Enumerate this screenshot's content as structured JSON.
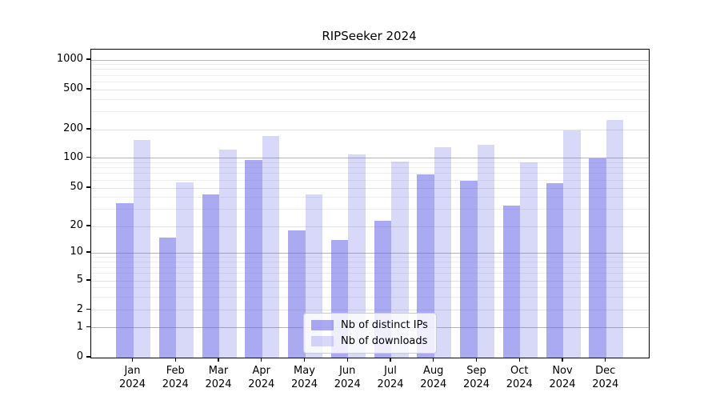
{
  "title": "RIPSeeker 2024",
  "legend": {
    "items": [
      {
        "label": "Nb of distinct IPs",
        "color": "rgba(100,100,232,0.55)"
      },
      {
        "label": "Nb of downloads",
        "color": "rgba(100,100,232,0.25)"
      }
    ],
    "position": "lower center"
  },
  "chart_data": {
    "type": "bar",
    "title": "RIPSeeker 2024",
    "categories": [
      "Jan 2024",
      "Feb 2024",
      "Mar 2024",
      "Apr 2024",
      "May 2024",
      "Jun 2024",
      "Jul 2024",
      "Aug 2024",
      "Sep 2024",
      "Oct 2024",
      "Nov 2024",
      "Dec 2024"
    ],
    "category_month_labels": [
      "Jan",
      "Feb",
      "Mar",
      "Apr",
      "May",
      "Jun",
      "Jul",
      "Aug",
      "Sep",
      "Oct",
      "Nov",
      "Dec"
    ],
    "category_year_label": "2024",
    "series": [
      {
        "name": "Nb of distinct IPs",
        "color": "rgba(100,100,232,0.55)",
        "values": [
          35,
          15,
          43,
          95,
          18,
          14,
          23,
          68,
          59,
          33,
          56,
          100
        ]
      },
      {
        "name": "Nb of downloads",
        "color": "rgba(100,100,232,0.25)",
        "values": [
          155,
          57,
          122,
          170,
          43,
          110,
          92,
          131,
          139,
          90,
          195,
          250
        ]
      }
    ],
    "yaxis": {
      "scale": "log-like",
      "tick_labels": [
        "0",
        "1",
        "2",
        "5",
        "10",
        "20",
        "50",
        "100",
        "200",
        "500",
        "1000"
      ],
      "tick_values": [
        0,
        1,
        2,
        5,
        10,
        20,
        50,
        100,
        200,
        500,
        1000
      ],
      "ylim": [
        0,
        1300
      ]
    },
    "grid": true,
    "legend_position": "lower center",
    "colors": {
      "grid_major": "#b4b4b4",
      "grid_minor": "#ededf0",
      "spine": "#000000",
      "background": "#ffffff"
    }
  }
}
